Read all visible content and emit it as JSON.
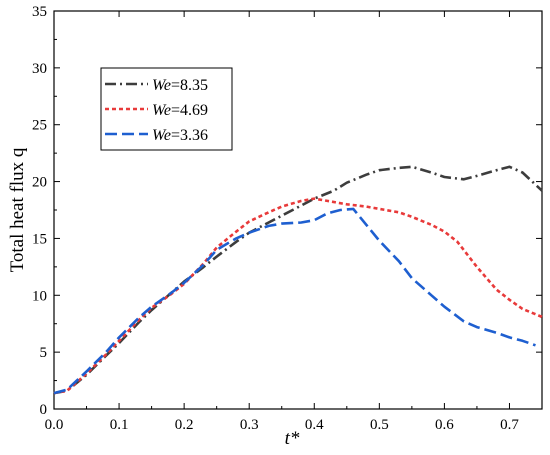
{
  "chart_data": {
    "type": "line",
    "title": "",
    "xlabel": "t*",
    "ylabel": "Total heat flux q",
    "xlim": [
      0.0,
      0.75
    ],
    "ylim": [
      0,
      35
    ],
    "xticks": [
      0.0,
      0.1,
      0.2,
      0.3,
      0.4,
      0.5,
      0.6,
      0.7
    ],
    "yticks": [
      0,
      5,
      10,
      15,
      20,
      25,
      30,
      35
    ],
    "grid": false,
    "legend_position": "upper-left",
    "series": [
      {
        "name": "We=8.35",
        "name_italic": "We",
        "name_rest": "=8.35",
        "color": "#3d3d3d",
        "dash": "dash-dot",
        "x": [
          0.0,
          0.02,
          0.05,
          0.08,
          0.1,
          0.13,
          0.15,
          0.18,
          0.2,
          0.23,
          0.25,
          0.28,
          0.3,
          0.33,
          0.35,
          0.38,
          0.4,
          0.43,
          0.45,
          0.48,
          0.5,
          0.53,
          0.55,
          0.58,
          0.6,
          0.63,
          0.65,
          0.68,
          0.7,
          0.72,
          0.75
        ],
        "y": [
          1.4,
          1.6,
          3.0,
          4.7,
          5.8,
          7.6,
          8.7,
          10.2,
          11.2,
          12.5,
          13.4,
          14.7,
          15.5,
          16.4,
          17.0,
          17.9,
          18.5,
          19.2,
          19.9,
          20.6,
          21.0,
          21.2,
          21.3,
          20.8,
          20.4,
          20.2,
          20.5,
          21.0,
          21.3,
          20.8,
          19.2
        ]
      },
      {
        "name": "We=4.69",
        "name_italic": "We",
        "name_rest": "=4.69",
        "color": "#e83a3a",
        "dash": "dotted-short-dash",
        "x": [
          0.0,
          0.02,
          0.05,
          0.08,
          0.1,
          0.13,
          0.15,
          0.18,
          0.2,
          0.23,
          0.25,
          0.28,
          0.3,
          0.33,
          0.35,
          0.38,
          0.4,
          0.42,
          0.45,
          0.48,
          0.5,
          0.53,
          0.55,
          0.58,
          0.6,
          0.62,
          0.65,
          0.68,
          0.7,
          0.72,
          0.75
        ],
        "y": [
          1.4,
          1.6,
          3.1,
          4.8,
          6.0,
          7.8,
          8.9,
          10.1,
          11.0,
          12.8,
          14.2,
          15.6,
          16.5,
          17.3,
          17.8,
          18.3,
          18.5,
          18.3,
          18.0,
          17.8,
          17.6,
          17.3,
          16.9,
          16.2,
          15.6,
          14.7,
          12.5,
          10.5,
          9.6,
          8.8,
          8.1
        ]
      },
      {
        "name": "We=3.36",
        "name_italic": "We",
        "name_rest": "=3.36",
        "color": "#1e5fd0",
        "dash": "long-dash",
        "x": [
          0.0,
          0.02,
          0.05,
          0.08,
          0.1,
          0.13,
          0.15,
          0.18,
          0.2,
          0.23,
          0.25,
          0.28,
          0.3,
          0.33,
          0.35,
          0.38,
          0.4,
          0.42,
          0.44,
          0.46,
          0.48,
          0.5,
          0.53,
          0.55,
          0.58,
          0.6,
          0.63,
          0.65,
          0.68,
          0.7,
          0.72,
          0.74
        ],
        "y": [
          1.4,
          1.7,
          3.3,
          5.0,
          6.3,
          8.0,
          9.0,
          10.2,
          11.1,
          12.7,
          14.0,
          15.0,
          15.5,
          16.1,
          16.3,
          16.4,
          16.6,
          17.2,
          17.5,
          17.6,
          16.2,
          14.8,
          13.0,
          11.5,
          10.0,
          9.0,
          7.7,
          7.2,
          6.7,
          6.3,
          6.0,
          5.6
        ]
      }
    ]
  }
}
